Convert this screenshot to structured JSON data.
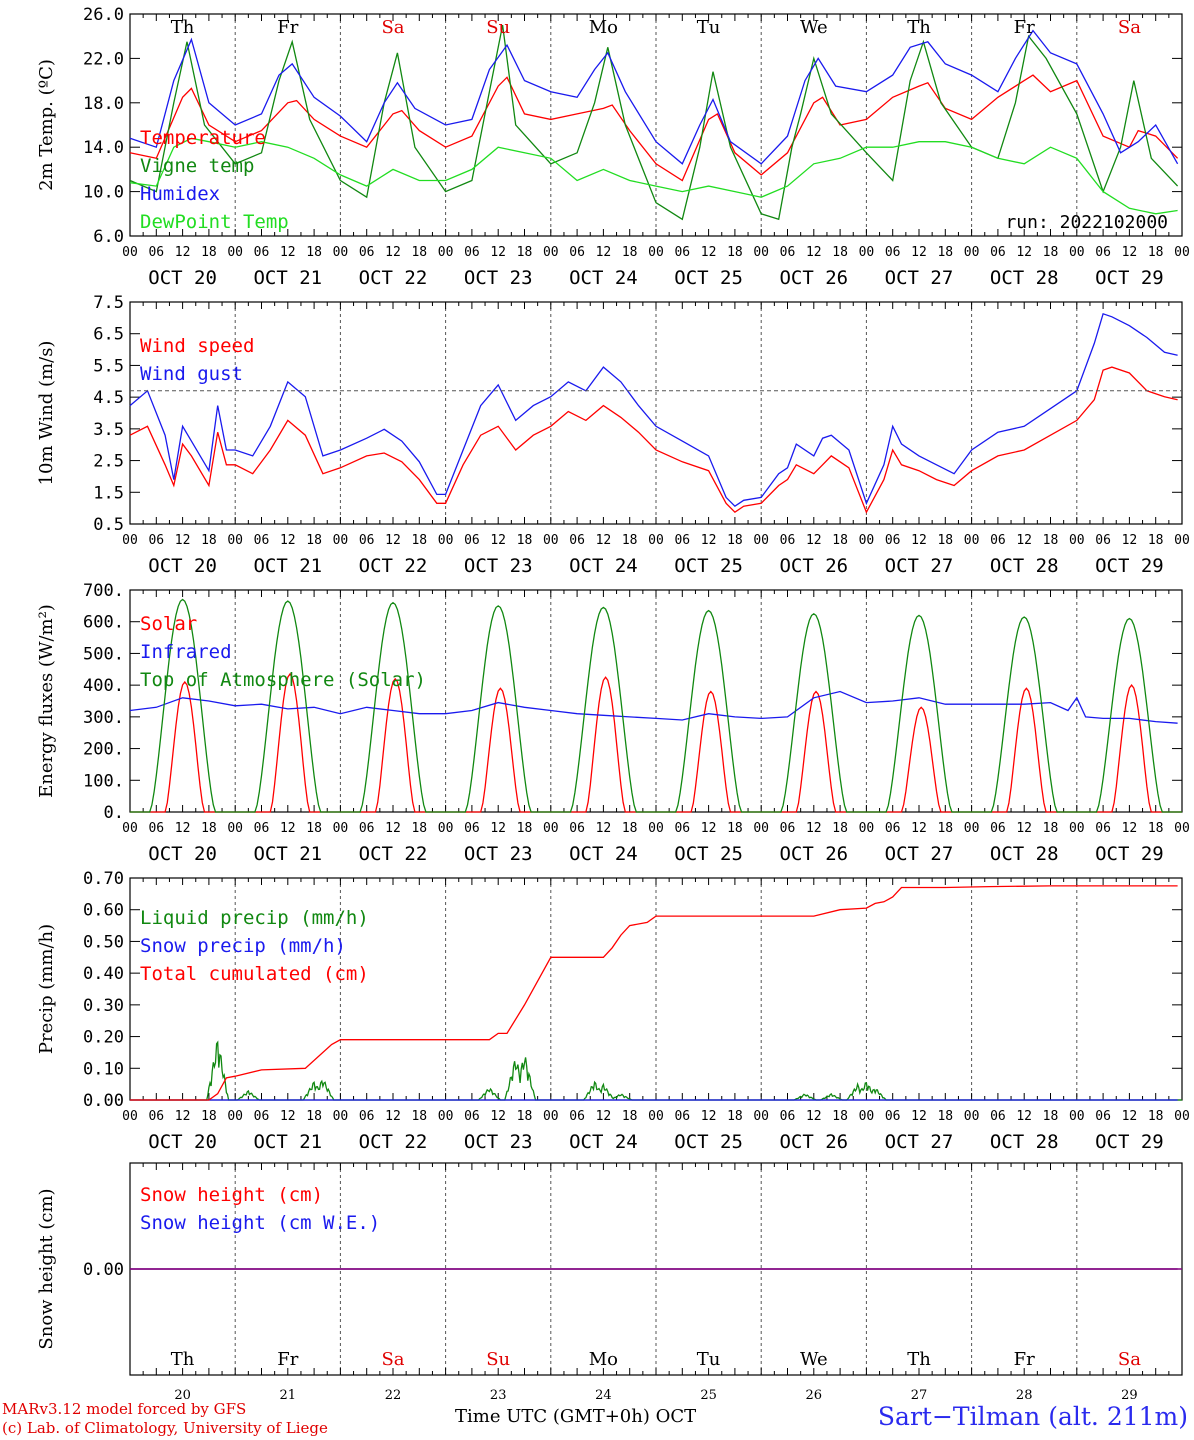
{
  "days": [
    "OCT 20",
    "OCT 21",
    "OCT 22",
    "OCT 23",
    "OCT 24",
    "OCT 25",
    "OCT 26",
    "OCT 27",
    "OCT 28",
    "OCT 29"
  ],
  "weekdays": [
    "Th",
    "Fr",
    "Sa",
    "Su",
    "Mo",
    "Tu",
    "We",
    "Th",
    "Fr",
    "Sa"
  ],
  "weekday_colors": [
    "#000000",
    "#000000",
    "#e00000",
    "#e00000",
    "#000000",
    "#000000",
    "#000000",
    "#000000",
    "#000000",
    "#e00000"
  ],
  "day_numbers": [
    "20",
    "21",
    "22",
    "23",
    "24",
    "25",
    "26",
    "27",
    "28",
    "29"
  ],
  "hour_ticks": [
    "00",
    "06",
    "12",
    "18"
  ],
  "hour_end": "00",
  "colors": {
    "red": "#ff0000",
    "green": "#118811",
    "blue": "#1a1aee",
    "lightgreen": "#22dd22",
    "purple": "#800080"
  },
  "footer": {
    "model": "MARv3.12 model forced by GFS",
    "lab": "(c) Lab. of Climatology, University of Liege",
    "time_label": "Time UTC (GMT+0h) OCT",
    "station": "Sart−Tilman (alt. 211m)"
  },
  "chart_data": [
    {
      "type": "line",
      "ylabel": "2m Temp. (ºC)",
      "ylim": [
        6.0,
        26.0
      ],
      "yticks": [
        "6.0",
        "10.0",
        "14.0",
        "18.0",
        "22.0",
        "26.0"
      ],
      "annotation": "run: 2022102000",
      "series": [
        {
          "name": "Temperature",
          "color": "red",
          "x": [
            0,
            6,
            12,
            14,
            18,
            24,
            30,
            36,
            38,
            42,
            48,
            54,
            60,
            62,
            66,
            72,
            78,
            84,
            86,
            90,
            96,
            102,
            108,
            110,
            114,
            120,
            126,
            132,
            134,
            138,
            144,
            150,
            156,
            158,
            162,
            168,
            174,
            180,
            182,
            186,
            192,
            198,
            204,
            206,
            210,
            216,
            222,
            228,
            230,
            234,
            239
          ],
          "y": [
            13.5,
            13.0,
            18.5,
            19.3,
            16.0,
            14.5,
            15.5,
            18.0,
            18.2,
            16.5,
            15.0,
            14.0,
            17.0,
            17.3,
            15.5,
            14.0,
            15.0,
            19.5,
            20.3,
            17.0,
            16.5,
            17.0,
            17.5,
            17.8,
            15.5,
            12.5,
            11.0,
            16.5,
            17.0,
            13.5,
            11.5,
            13.5,
            18.0,
            18.5,
            16.0,
            16.5,
            18.5,
            19.5,
            19.8,
            17.5,
            16.5,
            18.5,
            20.0,
            20.5,
            19.0,
            20.0,
            15.0,
            14.0,
            15.5,
            15.0,
            13.0
          ]
        },
        {
          "name": "Vigne temp",
          "color": "green",
          "x": [
            0,
            6,
            10,
            13,
            17,
            24,
            30,
            34,
            37,
            41,
            48,
            54,
            58,
            61,
            65,
            72,
            78,
            82,
            85,
            88,
            96,
            102,
            106,
            109,
            113,
            120,
            126,
            130,
            133,
            137,
            144,
            148,
            151,
            153,
            156,
            160,
            168,
            174,
            178,
            181,
            185,
            192,
            198,
            202,
            205,
            209,
            216,
            222,
            226,
            229,
            233,
            239
          ],
          "y": [
            11.0,
            10.0,
            18.0,
            23.5,
            16.0,
            12.5,
            13.5,
            20.0,
            23.5,
            16.5,
            11.0,
            9.5,
            18.0,
            22.5,
            14.0,
            10.0,
            11.0,
            19.0,
            25.0,
            16.0,
            12.5,
            13.5,
            18.0,
            23.0,
            16.0,
            9.0,
            7.5,
            14.0,
            20.8,
            14.0,
            8.0,
            7.5,
            14.0,
            17.0,
            22.0,
            17.0,
            13.5,
            11.0,
            20.0,
            23.5,
            18.0,
            14.0,
            13.0,
            18.0,
            24.0,
            22.0,
            17.0,
            10.0,
            14.0,
            20.0,
            13.0,
            10.5
          ]
        },
        {
          "name": "Humidex",
          "color": "blue",
          "x": [
            0,
            6,
            10,
            14,
            18,
            24,
            30,
            34,
            37,
            42,
            48,
            54,
            58,
            61,
            65,
            72,
            78,
            82,
            86,
            90,
            96,
            102,
            106,
            109,
            113,
            120,
            126,
            130,
            133,
            137,
            144,
            150,
            154,
            157,
            161,
            168,
            174,
            178,
            182,
            186,
            192,
            198,
            202,
            206,
            210,
            216,
            222,
            226,
            230,
            234,
            239
          ],
          "y": [
            14.8,
            14.0,
            20.0,
            23.7,
            18.0,
            16.0,
            17.0,
            20.5,
            21.5,
            18.5,
            16.8,
            14.5,
            18.0,
            19.8,
            17.5,
            16.0,
            16.5,
            21.0,
            23.2,
            20.0,
            19.0,
            18.5,
            21.0,
            22.5,
            19.0,
            14.5,
            12.5,
            16.0,
            18.3,
            14.5,
            12.5,
            15.0,
            20.0,
            22.0,
            19.5,
            19.0,
            20.5,
            23.0,
            23.5,
            21.5,
            20.5,
            19.0,
            22.0,
            24.5,
            22.5,
            21.5,
            17.0,
            13.5,
            14.5,
            16.0,
            12.5
          ]
        },
        {
          "name": "DewPoint Temp",
          "color": "lightgreen",
          "x": [
            0,
            6,
            10,
            14,
            18,
            24,
            30,
            36,
            42,
            48,
            54,
            60,
            66,
            72,
            78,
            84,
            90,
            96,
            102,
            108,
            114,
            120,
            126,
            132,
            138,
            144,
            150,
            156,
            162,
            168,
            174,
            180,
            186,
            192,
            198,
            204,
            210,
            216,
            222,
            228,
            234,
            239
          ],
          "y": [
            10.8,
            10.5,
            14.0,
            14.8,
            14.5,
            14.0,
            14.5,
            14.0,
            13.0,
            11.5,
            10.5,
            12.0,
            11.0,
            11.0,
            12.0,
            14.0,
            13.5,
            13.0,
            11.0,
            12.0,
            11.0,
            10.5,
            10.0,
            10.5,
            10.0,
            9.5,
            10.5,
            12.5,
            13.0,
            14.0,
            14.0,
            14.5,
            14.5,
            14.0,
            13.0,
            12.5,
            14.0,
            13.0,
            10.0,
            8.5,
            8.0,
            8.3
          ]
        }
      ]
    },
    {
      "type": "line",
      "ylabel": "10m Wind (m/s)",
      "ylim": [
        0.5,
        8.0
      ],
      "yticks": [
        "0.5",
        "1.5",
        "2.5",
        "3.5",
        "4.5",
        "5.5",
        "6.5",
        "7.5"
      ],
      "reference_line": 5.0,
      "series": [
        {
          "name": "Wind speed",
          "color": "red",
          "x": [
            0,
            4,
            8,
            10,
            12,
            14,
            18,
            20,
            22,
            24,
            28,
            32,
            36,
            40,
            44,
            48,
            54,
            58,
            62,
            66,
            70,
            72,
            76,
            80,
            84,
            88,
            92,
            96,
            100,
            104,
            108,
            112,
            116,
            120,
            126,
            132,
            136,
            138,
            140,
            144,
            148,
            150,
            152,
            156,
            158,
            160,
            164,
            168,
            172,
            174,
            176,
            180,
            184,
            188,
            192,
            198,
            204,
            210,
            216,
            220,
            222,
            224,
            228,
            232,
            236,
            239
          ],
          "y": [
            3.5,
            3.8,
            2.5,
            1.8,
            3.2,
            2.8,
            1.8,
            3.6,
            2.5,
            2.5,
            2.2,
            3.0,
            4.0,
            3.5,
            2.2,
            2.4,
            2.8,
            2.9,
            2.6,
            2.0,
            1.2,
            1.2,
            2.5,
            3.5,
            3.8,
            3.0,
            3.5,
            3.8,
            4.3,
            4.0,
            4.5,
            4.1,
            3.6,
            3.0,
            2.6,
            2.3,
            1.2,
            0.9,
            1.1,
            1.2,
            1.8,
            2.0,
            2.5,
            2.2,
            2.5,
            2.8,
            2.4,
            0.9,
            2.0,
            3.0,
            2.5,
            2.3,
            2.0,
            1.8,
            2.3,
            2.8,
            3.0,
            3.5,
            4.0,
            4.7,
            5.7,
            5.8,
            5.6,
            5.0,
            4.8,
            4.7
          ]
        },
        {
          "name": "Wind gust",
          "color": "blue",
          "x": [
            0,
            4,
            8,
            10,
            12,
            14,
            18,
            20,
            22,
            24,
            28,
            32,
            36,
            40,
            44,
            48,
            54,
            58,
            62,
            66,
            70,
            72,
            76,
            80,
            84,
            88,
            92,
            96,
            100,
            104,
            108,
            112,
            116,
            120,
            126,
            132,
            136,
            138,
            140,
            144,
            148,
            150,
            152,
            156,
            158,
            160,
            164,
            168,
            172,
            174,
            176,
            180,
            184,
            188,
            192,
            198,
            204,
            210,
            216,
            220,
            222,
            224,
            228,
            232,
            236,
            239
          ],
          "y": [
            4.5,
            5.0,
            3.5,
            2.0,
            3.8,
            3.3,
            2.3,
            4.5,
            3.0,
            3.0,
            2.8,
            3.8,
            5.3,
            4.8,
            2.8,
            3.0,
            3.4,
            3.7,
            3.3,
            2.6,
            1.5,
            1.5,
            3.0,
            4.5,
            5.2,
            4.0,
            4.5,
            4.8,
            5.3,
            5.0,
            5.8,
            5.3,
            4.5,
            3.8,
            3.3,
            2.8,
            1.4,
            1.1,
            1.3,
            1.4,
            2.2,
            2.4,
            3.2,
            2.8,
            3.4,
            3.5,
            3.0,
            1.2,
            2.5,
            3.8,
            3.2,
            2.8,
            2.5,
            2.2,
            3.0,
            3.6,
            3.8,
            4.4,
            5.0,
            6.6,
            7.6,
            7.5,
            7.2,
            6.8,
            6.3,
            6.2
          ]
        }
      ]
    },
    {
      "type": "line",
      "ylabel": "Energy fluxes (W/m²)",
      "ylim": [
        0,
        700
      ],
      "yticks": [
        "0.",
        "100.",
        "200.",
        "300.",
        "400.",
        "500.",
        "600.",
        "700."
      ],
      "series": [
        {
          "name": "Solar",
          "color": "red",
          "peaks": [
            410,
            435,
            420,
            390,
            425,
            380,
            380,
            330,
            390,
            400
          ],
          "peak_hour": 12.5,
          "half_width": 4.5
        },
        {
          "name": "Infrared",
          "color": "blue",
          "x": [
            0,
            6,
            12,
            18,
            24,
            30,
            36,
            42,
            48,
            54,
            60,
            66,
            72,
            78,
            84,
            90,
            96,
            102,
            108,
            114,
            120,
            126,
            132,
            138,
            144,
            150,
            156,
            162,
            168,
            174,
            180,
            186,
            192,
            198,
            204,
            210,
            214,
            216,
            218,
            222,
            228,
            234,
            239
          ],
          "y": [
            320,
            330,
            360,
            350,
            335,
            340,
            325,
            330,
            310,
            330,
            320,
            310,
            310,
            320,
            345,
            330,
            320,
            310,
            305,
            300,
            295,
            290,
            310,
            300,
            295,
            300,
            360,
            380,
            345,
            350,
            360,
            340,
            340,
            340,
            340,
            345,
            320,
            360,
            300,
            295,
            295,
            285,
            280
          ]
        },
        {
          "name": "Top of Atmosphere (Solar)",
          "color": "green",
          "peaks": [
            670,
            665,
            660,
            650,
            645,
            635,
            625,
            620,
            615,
            610
          ],
          "peak_hour": 12.0,
          "half_width": 7.5
        }
      ]
    },
    {
      "type": "line",
      "ylabel": "Precip (mm/h)",
      "ylim": [
        0.0,
        0.7
      ],
      "yticks": [
        "0.00",
        "0.10",
        "0.20",
        "0.30",
        "0.40",
        "0.50",
        "0.60",
        "0.70"
      ],
      "series": [
        {
          "name": "Liquid precip (mm/h)",
          "color": "green",
          "bursts": [
            [
              20,
              0.2
            ],
            [
              27,
              0.03
            ],
            [
              42,
              0.06
            ],
            [
              44,
              0.07
            ],
            [
              82,
              0.04
            ],
            [
              88,
              0.14
            ],
            [
              90,
              0.15
            ],
            [
              106,
              0.06
            ],
            [
              108,
              0.05
            ],
            [
              112,
              0.02
            ],
            [
              154,
              0.02
            ],
            [
              160,
              0.02
            ],
            [
              166,
              0.05
            ],
            [
              168,
              0.06
            ],
            [
              170,
              0.04
            ]
          ]
        },
        {
          "name": "Snow precip (mm/h)",
          "color": "blue",
          "x": [
            0,
            239
          ],
          "y": [
            0,
            0
          ]
        },
        {
          "name": "Total cumulated (cm)",
          "color": "red",
          "x": [
            0,
            18,
            20,
            22,
            24,
            30,
            40,
            46,
            48,
            60,
            72,
            82,
            84,
            86,
            90,
            96,
            108,
            110,
            112,
            114,
            118,
            120,
            132,
            144,
            156,
            162,
            168,
            170,
            172,
            174,
            176,
            186,
            196,
            210,
            239
          ],
          "y": [
            0,
            0.0,
            0.02,
            0.07,
            0.075,
            0.095,
            0.1,
            0.175,
            0.19,
            0.19,
            0.19,
            0.19,
            0.21,
            0.21,
            0.3,
            0.45,
            0.45,
            0.48,
            0.52,
            0.55,
            0.56,
            0.58,
            0.58,
            0.58,
            0.58,
            0.6,
            0.605,
            0.62,
            0.625,
            0.64,
            0.67,
            0.67,
            0.673,
            0.675,
            0.675
          ]
        }
      ]
    },
    {
      "type": "line",
      "ylabel": "Snow height (cm)",
      "ylim": [
        -1.0,
        1.0
      ],
      "yticks": [
        "0.00"
      ],
      "series": [
        {
          "name": "Snow height (cm)",
          "color": "red",
          "x": [
            0,
            239
          ],
          "y": [
            0,
            0
          ]
        },
        {
          "name": "Snow height (cm W.E.)",
          "color": "blue",
          "x": [
            0,
            239
          ],
          "y": [
            0,
            0
          ]
        }
      ]
    }
  ]
}
